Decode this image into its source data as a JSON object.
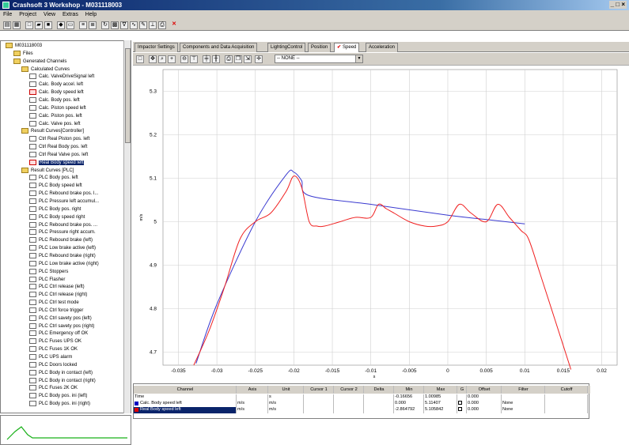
{
  "window": {
    "title": "Crashsoft 3 Workshop - M031118003",
    "winbtns": "_ □ ×"
  },
  "menu": [
    "File",
    "Project",
    "View",
    "Extras",
    "Help"
  ],
  "tree": {
    "items": [
      {
        "label": "M031118003",
        "indent": 0,
        "icon": "folder"
      },
      {
        "label": "Files",
        "indent": 1,
        "icon": "folder"
      },
      {
        "label": "Generated Channels",
        "indent": 1,
        "icon": "folder"
      },
      {
        "label": "Calculated Curves",
        "indent": 2,
        "icon": "folder"
      },
      {
        "label": "Calc. ValveDriveSignal left",
        "indent": 3,
        "icon": "file"
      },
      {
        "label": "Calc. Body accel. left",
        "indent": 3,
        "icon": "file"
      },
      {
        "label": "Calc. Body speed left",
        "indent": 3,
        "icon": "red"
      },
      {
        "label": "Calc. Body pos. left",
        "indent": 3,
        "icon": "file"
      },
      {
        "label": "Calc. Piston speed left",
        "indent": 3,
        "icon": "file"
      },
      {
        "label": "Calc. Piston pos. left",
        "indent": 3,
        "icon": "file"
      },
      {
        "label": "Calc. Valve pos. left",
        "indent": 3,
        "icon": "file"
      },
      {
        "label": "Result Curves[Controller]",
        "indent": 2,
        "icon": "folder"
      },
      {
        "label": "Ctrl Real Piston pos. left",
        "indent": 3,
        "icon": "file"
      },
      {
        "label": "Ctrl Real Body pos. left",
        "indent": 3,
        "icon": "file"
      },
      {
        "label": "Ctrl Real Valve pos. left",
        "indent": 3,
        "icon": "file"
      },
      {
        "label": "Real Body speed left",
        "indent": 3,
        "icon": "red",
        "selected": true
      },
      {
        "label": "Result Curves [PLC]",
        "indent": 2,
        "icon": "folder"
      },
      {
        "label": "PLC Body pos. left",
        "indent": 3,
        "icon": "file"
      },
      {
        "label": "PLC Body speed left",
        "indent": 3,
        "icon": "file"
      },
      {
        "label": "PLC Rebound brake pos. l...",
        "indent": 3,
        "icon": "file"
      },
      {
        "label": "PLC Pressure left accumul...",
        "indent": 3,
        "icon": "file"
      },
      {
        "label": "PLC Body pos. right",
        "indent": 3,
        "icon": "file"
      },
      {
        "label": "PLC Body speed right",
        "indent": 3,
        "icon": "file"
      },
      {
        "label": "PLC Rebound brake pos. ...",
        "indent": 3,
        "icon": "file"
      },
      {
        "label": "PLC Pressure right accum.",
        "indent": 3,
        "icon": "file"
      },
      {
        "label": "PLC Rebound brake (left)",
        "indent": 3,
        "icon": "file"
      },
      {
        "label": "PLC Low brake active (left)",
        "indent": 3,
        "icon": "file"
      },
      {
        "label": "PLC Rebound brake (right)",
        "indent": 3,
        "icon": "file"
      },
      {
        "label": "PLC Low brake active (right)",
        "indent": 3,
        "icon": "file"
      },
      {
        "label": "PLC Stoppers",
        "indent": 3,
        "icon": "file"
      },
      {
        "label": "PLC Flasher",
        "indent": 3,
        "icon": "file"
      },
      {
        "label": "PLC Ctrl release (left)",
        "indent": 3,
        "icon": "file"
      },
      {
        "label": "PLC Ctrl release (right)",
        "indent": 3,
        "icon": "file"
      },
      {
        "label": "PLC Ctrl test mode",
        "indent": 3,
        "icon": "file"
      },
      {
        "label": "PLC Ctrl force trigger",
        "indent": 3,
        "icon": "file"
      },
      {
        "label": "PLC Ctrl savety pos (left)",
        "indent": 3,
        "icon": "file"
      },
      {
        "label": "PLC Ctrl savety pos (right)",
        "indent": 3,
        "icon": "file"
      },
      {
        "label": "PLC Emergency off OK",
        "indent": 3,
        "icon": "file"
      },
      {
        "label": "PLC Fuses UPS OK",
        "indent": 3,
        "icon": "file"
      },
      {
        "label": "PLC Fuses 1K OK",
        "indent": 3,
        "icon": "file"
      },
      {
        "label": "PLC UPS alarm",
        "indent": 3,
        "icon": "file"
      },
      {
        "label": "PLC Doors locked",
        "indent": 3,
        "icon": "file"
      },
      {
        "label": "PLC Body in contact (left)",
        "indent": 3,
        "icon": "file"
      },
      {
        "label": "PLC Body in contact (right)",
        "indent": 3,
        "icon": "file"
      },
      {
        "label": "PLC Fuses 2K OK",
        "indent": 3,
        "icon": "file"
      },
      {
        "label": "PLC Body pos. ini (left)",
        "indent": 3,
        "icon": "file"
      },
      {
        "label": "PLC Body pos. ini (right)",
        "indent": 3,
        "icon": "file"
      }
    ]
  },
  "tabs": [
    {
      "label": "Impactor Settings"
    },
    {
      "label": "Components and Data Acquisition"
    },
    {
      "label": "LightingControl"
    },
    {
      "label": "Position"
    },
    {
      "label": "Speed",
      "active": true,
      "checked": true
    },
    {
      "label": "Acceleration"
    }
  ],
  "plot_toolbar": {
    "channel_select": "-- NONE --"
  },
  "chart_data": {
    "type": "line",
    "xlabel": "s",
    "ylabel": "m/s",
    "xlim": [
      -0.037,
      0.022
    ],
    "ylim": [
      4.67,
      5.35
    ],
    "xticks": [
      "-0.035",
      "-0.03",
      "-0.025",
      "-0.02",
      "-0.015",
      "-0.01",
      "-0.005",
      "0",
      "0.005",
      "0.01",
      "0.015",
      "0.02"
    ],
    "xtick_values": [
      -0.035,
      -0.03,
      -0.025,
      -0.02,
      -0.015,
      -0.01,
      -0.005,
      0,
      0.005,
      0.01,
      0.015,
      0.02
    ],
    "yticks": [
      "4.7",
      "4.8",
      "4.9",
      "5",
      "5.1",
      "5.2",
      "5.3"
    ],
    "ytick_values": [
      4.7,
      4.8,
      4.9,
      5,
      5.1,
      5.2,
      5.3
    ],
    "grid": true,
    "series": [
      {
        "name": "Calc. Body speed left",
        "color": "#3a3ad0",
        "x": [
          -0.0327,
          -0.03,
          -0.025,
          -0.021,
          -0.02,
          -0.019,
          -0.018,
          -0.01,
          0.0,
          0.005,
          0.01
        ],
        "y": [
          4.674,
          4.81,
          5.0,
          5.108,
          5.114,
          5.095,
          5.06,
          5.04,
          5.015,
          5.005,
          4.995
        ]
      },
      {
        "name": "Real Body speed left",
        "color": "#f02020",
        "x": [
          -0.033,
          -0.031,
          -0.029,
          -0.027,
          -0.025,
          -0.023,
          -0.021,
          -0.02,
          -0.019,
          -0.018,
          -0.017,
          -0.016,
          -0.014,
          -0.012,
          -0.01,
          -0.009,
          -0.008,
          -0.007,
          -0.005,
          -0.003,
          -0.0015,
          0.0,
          0.0015,
          0.003,
          0.005,
          0.0065,
          0.008,
          0.0095,
          0.0105,
          0.012,
          0.014,
          0.016
        ],
        "y": [
          4.67,
          4.75,
          4.85,
          4.96,
          5.0,
          5.02,
          5.07,
          5.105,
          5.08,
          5.0,
          4.99,
          4.99,
          5.0,
          5.01,
          5.01,
          5.04,
          5.03,
          5.02,
          5.0,
          4.99,
          4.99,
          5.0,
          5.04,
          5.02,
          5.0,
          5.04,
          5.01,
          4.98,
          4.96,
          4.88,
          4.77,
          4.66
        ]
      }
    ]
  },
  "table": {
    "headers": [
      "Channel",
      "Axis",
      "Unit",
      "Cursor 1",
      "Cursor 2",
      "Delta",
      "Min",
      "Max",
      "G",
      "Offset",
      "Filter",
      "Cutoff"
    ],
    "rows": [
      {
        "cells": [
          "Time",
          "",
          "s",
          "",
          "",
          "",
          "-0.16656",
          "1.00985",
          "",
          "0.000",
          "",
          ""
        ],
        "swatch": "",
        "checkbox": false
      },
      {
        "cells": [
          "Calc. Body speed left",
          "m/s",
          "m/s",
          "",
          "",
          "",
          "0.000",
          "5.11407",
          "",
          "0.000",
          "None",
          ""
        ],
        "swatch": "#0000c0",
        "checkbox": true
      },
      {
        "cells": [
          "Real Body speed left",
          "m/s",
          "m/s",
          "",
          "",
          "",
          "-2.864792",
          "5.105842",
          "",
          "0.000",
          "None",
          ""
        ],
        "swatch": "#e00000",
        "checkbox": true,
        "selected": true
      }
    ]
  }
}
